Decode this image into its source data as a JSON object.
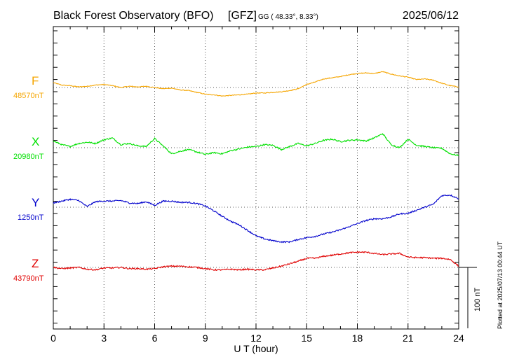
{
  "header": {
    "station": "Black Forest Observatory (BFO)",
    "org": "[GFZ]",
    "coords": "GG ( 48.33°,   8.33°)",
    "date": "2025/06/12"
  },
  "footer": {
    "plotted": "Plotted at 2025/07/13 00:44 UT",
    "scale_label": "100 nT"
  },
  "colors": {
    "F": "#f5a500",
    "X": "#00e000",
    "Y": "#0000cc",
    "Z": "#e00000"
  },
  "chart_data": {
    "type": "line",
    "title": "Black Forest Observatory (BFO) [GFZ]",
    "xlabel": "U T (hour)",
    "ylabel": "",
    "xlim": [
      0,
      24
    ],
    "xticks": [
      "0",
      "3",
      "6",
      "9",
      "12",
      "15",
      "18",
      "21",
      "24"
    ],
    "scale_bar_nT": 100,
    "grid": true,
    "series": [
      {
        "name": "F",
        "baseline_label": "48570nT",
        "baseline": 48570,
        "x": [
          0,
          0.5,
          1,
          1.5,
          2,
          2.5,
          3,
          3.5,
          4,
          4.5,
          5,
          5.5,
          6,
          6.5,
          7,
          7.5,
          8,
          8.5,
          9,
          9.5,
          10,
          10.5,
          11,
          11.5,
          12,
          12.5,
          13,
          13.5,
          14,
          14.5,
          15,
          15.5,
          16,
          16.5,
          17,
          17.5,
          18,
          18.5,
          19,
          19.5,
          20,
          20.5,
          21,
          21.5,
          22,
          22.5,
          23,
          23.5,
          24
        ],
        "values": [
          48578,
          48574,
          48573,
          48571,
          48572,
          48574,
          48575,
          48573,
          48570,
          48572,
          48571,
          48572,
          48570,
          48568,
          48569,
          48566,
          48565,
          48562,
          48559,
          48558,
          48556,
          48557,
          48558,
          48559,
          48561,
          48561,
          48562,
          48563,
          48565,
          48568,
          48575,
          48579,
          48584,
          48586,
          48588,
          48591,
          48593,
          48594,
          48593,
          48596,
          48592,
          48589,
          48587,
          48583,
          48584,
          48582,
          48577,
          48573,
          48571
        ]
      },
      {
        "name": "X",
        "baseline_label": "20980nT",
        "baseline": 20980,
        "x": [
          0,
          0.5,
          1,
          1.5,
          2,
          2.5,
          3,
          3.5,
          4,
          4.5,
          5,
          5.5,
          6,
          6.5,
          7,
          7.5,
          8,
          8.5,
          9,
          9.5,
          10,
          10.5,
          11,
          11.5,
          12,
          12.5,
          13,
          13.5,
          14,
          14.5,
          15,
          15.5,
          16,
          16.5,
          17,
          17.5,
          18,
          18.5,
          19,
          19.5,
          20,
          20.5,
          21,
          21.5,
          22,
          22.5,
          23,
          23.5,
          24
        ],
        "values": [
          20991,
          20985,
          20982,
          20987,
          20989,
          20987,
          20993,
          20996,
          20985,
          20987,
          20983,
          20982,
          20995,
          20983,
          20970,
          20974,
          20977,
          20973,
          20969,
          20972,
          20970,
          20975,
          20978,
          20981,
          20982,
          20985,
          20984,
          20977,
          20982,
          20987,
          20983,
          20987,
          20992,
          20994,
          20990,
          20992,
          20993,
          20991,
          20996,
          21003,
          20985,
          20980,
          20994,
          20984,
          20982,
          20980,
          20979,
          20970,
          20967
        ]
      },
      {
        "name": "Y",
        "baseline_label": "1250nT",
        "baseline": 1250,
        "x": [
          0,
          0.5,
          1,
          1.5,
          2,
          2.5,
          3,
          3.5,
          4,
          4.5,
          5,
          5.5,
          6,
          6.5,
          7,
          7.5,
          8,
          8.5,
          9,
          9.5,
          10,
          10.5,
          11,
          11.5,
          12,
          12.5,
          13,
          13.5,
          14,
          14.5,
          15,
          15.5,
          16,
          16.5,
          17,
          17.5,
          18,
          18.5,
          19,
          19.5,
          20,
          20.5,
          21,
          21.5,
          22,
          22.5,
          23,
          23.5,
          24
        ],
        "values": [
          1257,
          1260,
          1263,
          1261,
          1251,
          1259,
          1260,
          1260,
          1261,
          1257,
          1256,
          1259,
          1253,
          1260,
          1260,
          1258,
          1258,
          1256,
          1252,
          1244,
          1235,
          1227,
          1221,
          1212,
          1203,
          1198,
          1195,
          1193,
          1193,
          1197,
          1200,
          1202,
          1206,
          1209,
          1213,
          1218,
          1223,
          1228,
          1231,
          1231,
          1234,
          1239,
          1240,
          1245,
          1250,
          1255,
          1269,
          1270,
          1264
        ]
      },
      {
        "name": "Z",
        "baseline_label": "43790nT",
        "baseline": 43790,
        "x": [
          0,
          0.5,
          1,
          1.5,
          2,
          2.5,
          3,
          3.5,
          4,
          4.5,
          5,
          5.5,
          6,
          6.5,
          7,
          7.5,
          8,
          8.5,
          9,
          9.5,
          10,
          10.5,
          11,
          11.5,
          12,
          12.5,
          13,
          13.5,
          14,
          14.5,
          15,
          15.5,
          16,
          16.5,
          17,
          17.5,
          18,
          18.5,
          19,
          19.5,
          20,
          20.5,
          21,
          21.5,
          22,
          22.5,
          23,
          23.5,
          24
        ],
        "values": [
          43790,
          43788,
          43789,
          43790,
          43787,
          43786,
          43789,
          43789,
          43790,
          43788,
          43788,
          43787,
          43788,
          43791,
          43792,
          43792,
          43791,
          43790,
          43788,
          43786,
          43786,
          43787,
          43786,
          43787,
          43786,
          43786,
          43789,
          43792,
          43796,
          43800,
          43805,
          43805,
          43808,
          43810,
          43812,
          43814,
          43815,
          43815,
          43813,
          43811,
          43812,
          43813,
          43807,
          43806,
          43806,
          43805,
          43805,
          43803,
          43792
        ]
      }
    ]
  }
}
